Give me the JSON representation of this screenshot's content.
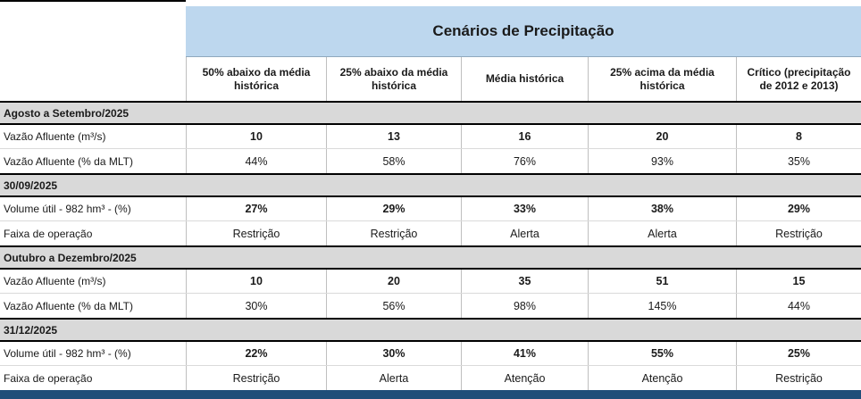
{
  "chart_data": {
    "type": "table",
    "title": "Cenários de Precipitação",
    "columns": [
      "50% abaixo da média histórica",
      "25% abaixo da média histórica",
      "Média histórica",
      "25% acima da média histórica",
      "Crítico (precipitação de 2012 e 2013)"
    ],
    "rows": [
      {
        "type": "section",
        "label": "Agosto a Setembro/2025"
      },
      {
        "type": "data",
        "label": "Vazão Afluente (m³/s)",
        "bold_values": true,
        "values": [
          "10",
          "13",
          "16",
          "20",
          "8"
        ]
      },
      {
        "type": "data",
        "label": "Vazão Afluente (% da MLT)",
        "bold_values": false,
        "values": [
          "44%",
          "58%",
          "76%",
          "93%",
          "35%"
        ]
      },
      {
        "type": "section",
        "label": "30/09/2025"
      },
      {
        "type": "data",
        "label": "Volume útil - 982 hm³ - (%)",
        "bold_values": true,
        "values": [
          "27%",
          "29%",
          "33%",
          "38%",
          "29%"
        ]
      },
      {
        "type": "data",
        "label": "Faixa de operação",
        "bold_values": false,
        "values": [
          "Restrição",
          "Restrição",
          "Alerta",
          "Alerta",
          "Restrição"
        ]
      },
      {
        "type": "section",
        "label": "Outubro a Dezembro/2025"
      },
      {
        "type": "data",
        "label": "Vazão Afluente (m³/s)",
        "bold_values": true,
        "values": [
          "10",
          "20",
          "35",
          "51",
          "15"
        ]
      },
      {
        "type": "data",
        "label": "Vazão Afluente (% da MLT)",
        "bold_values": false,
        "values": [
          "30%",
          "56%",
          "98%",
          "145%",
          "44%"
        ]
      },
      {
        "type": "section",
        "label": "31/12/2025"
      },
      {
        "type": "data",
        "label": "Volume útil - 982 hm³ - (%)",
        "bold_values": true,
        "values": [
          "22%",
          "30%",
          "41%",
          "55%",
          "25%"
        ]
      },
      {
        "type": "data",
        "label": "Faixa de operação",
        "bold_values": false,
        "values": [
          "Restrição",
          "Alerta",
          "Atenção",
          "Atenção",
          "Restrição"
        ]
      }
    ],
    "colors": {
      "title_bg": "#BDD7EE",
      "section_bg": "#D9D9D9",
      "bottom_bar": "#1F4E79",
      "grid_line": "#BFBFBF",
      "text": "#1A1A1A"
    }
  }
}
